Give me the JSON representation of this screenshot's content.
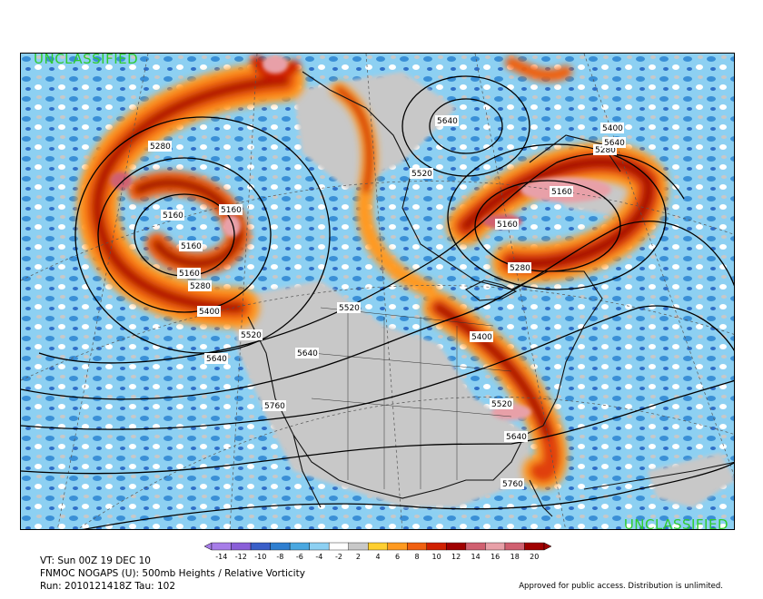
{
  "classification": {
    "top": "UNCLASSIFIED",
    "bottom": "UNCLASSIFIED"
  },
  "contour_labels": [
    "5160",
    "5160",
    "5160",
    "5160",
    "5160",
    "5160",
    "5280",
    "5280",
    "5280",
    "5280",
    "5400",
    "5400",
    "5400",
    "5520",
    "5520",
    "5520",
    "5520",
    "5640",
    "5640",
    "5640",
    "5640",
    "5640",
    "5760",
    "5760"
  ],
  "colorbar": {
    "ticks": [
      "-14",
      "-12",
      "-10",
      "-8",
      "-6",
      "-4",
      "-2",
      "2",
      "4",
      "6",
      "8",
      "10",
      "12",
      "14",
      "16",
      "18",
      "20"
    ],
    "colors": [
      "#a77de8",
      "#8a5fd8",
      "#3a5fc8",
      "#2f7fd0",
      "#4aa8e0",
      "#8dd0f2",
      "#ffffff",
      "#c8c8c8",
      "#ffcf30",
      "#ff9a20",
      "#f06010",
      "#d02000",
      "#a00000",
      "#d06070",
      "#e8a0a8",
      "#d06070",
      "#a00000"
    ]
  },
  "footer": {
    "valid_time": "VT: Sun 00Z 19 DEC 10",
    "model_line": "FNMOC NOGAPS (U): 500mb Heights / Relative Vorticity",
    "run_line": "Run: 2010121418Z Tau: 102",
    "approval": "Approved for public access. Distribution is unlimited."
  }
}
